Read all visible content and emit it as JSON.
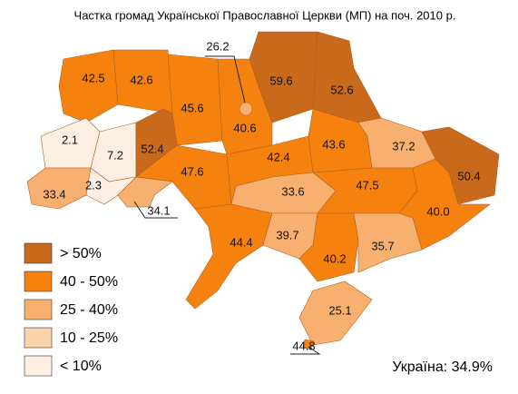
{
  "map": {
    "title": "Частка громад Української Православної Церкви (МП) на поч. 2010 р.",
    "legend": [
      {
        "label": "> 50%",
        "color": "#c8691c"
      },
      {
        "label": "40 - 50%",
        "color": "#f5820f"
      },
      {
        "label": "25 - 40%",
        "color": "#f8b070"
      },
      {
        "label": "10 - 25%",
        "color": "#fbd3aa"
      },
      {
        "label": "< 10%",
        "color": "#fdf0e2"
      }
    ],
    "regions": {
      "values": [
        42.5,
        42.6,
        45.6,
        40.6,
        26.2,
        59.6,
        52.6,
        2.1,
        7.2,
        52.4,
        47.6,
        42.4,
        43.6,
        37.2,
        50.4,
        33.4,
        2.3,
        34.1,
        33.6,
        47.5,
        40.0,
        44.4,
        39.7,
        40.2,
        35.7,
        25.1,
        44.8
      ],
      "value_labels": [
        "42.5",
        "42.6",
        "45.6",
        "40.6",
        "26.2",
        "59.6",
        "52.6",
        "2.1",
        "7.2",
        "52.4",
        "47.6",
        "42.4",
        "43.6",
        "37.2",
        "50.4",
        "33.4",
        "2.3",
        "34.1",
        "33.6",
        "47.5",
        "40.0",
        "44.4",
        "39.7",
        "40.2",
        "35.7",
        "25.1",
        "44.8"
      ],
      "classes": [
        1,
        1,
        1,
        1,
        2,
        0,
        0,
        4,
        4,
        0,
        1,
        1,
        1,
        2,
        0,
        2,
        4,
        2,
        2,
        1,
        1,
        1,
        2,
        1,
        2,
        2,
        1
      ]
    },
    "total": "Україна: 34.9%"
  }
}
